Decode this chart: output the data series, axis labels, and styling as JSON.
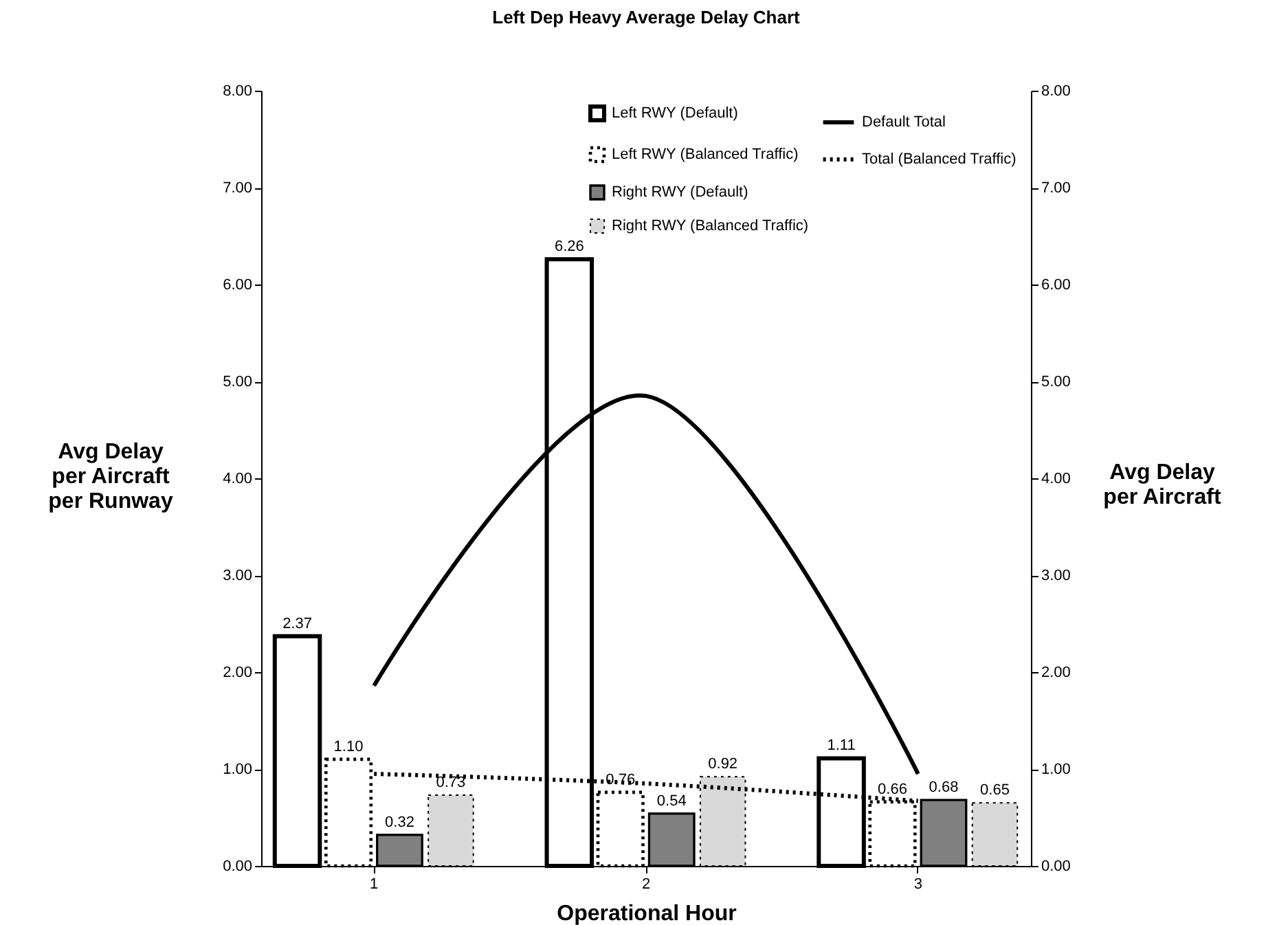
{
  "chart_data": {
    "type": "bar",
    "title": "Left Dep Heavy Average Delay Chart",
    "xlabel": "Operational Hour",
    "ylabel": "Avg Delay per Aircraft per Runway",
    "y2label": "Avg Delay per Aircraft",
    "categories": [
      "1",
      "2",
      "3"
    ],
    "series": [
      {
        "name": "Left RWY (Default)",
        "color": "#ffffff",
        "line_style": "solid",
        "values": [
          2.37,
          6.26,
          1.11
        ],
        "value_labels": [
          "2.37",
          "6.26",
          "1.11"
        ]
      },
      {
        "name": "Left RWY (Balanced Traffic)",
        "color": "#ffffff",
        "line_style": "dotted",
        "values": [
          1.1,
          0.76,
          0.66
        ],
        "value_labels": [
          "1.10",
          "0.76",
          "0.66"
        ]
      },
      {
        "name": "Right RWY (Default)",
        "color": "#808080",
        "values": [
          0.32,
          0.54,
          0.68
        ],
        "value_labels": [
          "0.32",
          "0.54",
          "0.68"
        ]
      },
      {
        "name": "Right RWY (Balanced Traffic)",
        "color": "#d9d9d9",
        "line_style": "dotted",
        "values": [
          0.73,
          0.92,
          0.65
        ],
        "value_labels": [
          "0.73",
          "0.92",
          "0.65"
        ]
      },
      {
        "name": "Default Total",
        "type": "line",
        "axis": "y2",
        "color": "#000000",
        "line_style": "solid",
        "values": [
          1.86,
          4.85,
          0.95
        ]
      },
      {
        "name": "Total (Balanced Traffic)",
        "type": "line",
        "axis": "y2",
        "color": "#000000",
        "line_style": "dotted",
        "values": [
          0.95,
          0.85,
          0.67
        ]
      }
    ],
    "ylim": [
      0,
      8
    ],
    "yticks": [
      {
        "value": 0,
        "label": "0.00"
      },
      {
        "value": 1,
        "label": "1.00"
      },
      {
        "value": 2,
        "label": "2.00"
      },
      {
        "value": 3,
        "label": "3.00"
      },
      {
        "value": 4,
        "label": "4.00"
      },
      {
        "value": 5,
        "label": "5.00"
      },
      {
        "value": 6,
        "label": "6.00"
      },
      {
        "value": 7,
        "label": "7.00"
      },
      {
        "value": 8,
        "label": "8.00"
      }
    ],
    "y2lim": [
      0,
      8
    ],
    "y2ticks": [
      {
        "value": 0,
        "label": "0.00"
      },
      {
        "value": 1,
        "label": "1.00"
      },
      {
        "value": 2,
        "label": "2.00"
      },
      {
        "value": 3,
        "label": "3.00"
      },
      {
        "value": 4,
        "label": "4.00"
      },
      {
        "value": 5,
        "label": "5.00"
      },
      {
        "value": 6,
        "label": "6.00"
      },
      {
        "value": 7,
        "label": "7.00"
      },
      {
        "value": 8,
        "label": "8.00"
      }
    ],
    "grid": false,
    "legend": "top right"
  }
}
